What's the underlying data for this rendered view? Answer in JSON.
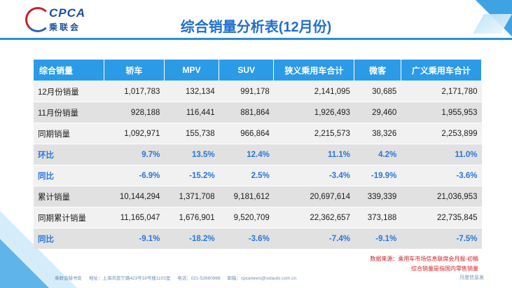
{
  "logo": {
    "text": "CPCA",
    "cn": "乘联会"
  },
  "title": "综合销量分析表(12月份)",
  "table": {
    "headers": [
      "综合销量",
      "轿车",
      "MPV",
      "SUV",
      "狭义乘用车合计",
      "微客",
      "广义乘用车合计"
    ],
    "rows": [
      {
        "label": "12月份销量",
        "values": [
          "1,017,783",
          "132,134",
          "991,178",
          "2,141,095",
          "30,685",
          "2,171,780"
        ],
        "pct": false
      },
      {
        "label": "11月份销量",
        "values": [
          "928,188",
          "116,441",
          "881,864",
          "1,926,493",
          "29,460",
          "1,955,953"
        ],
        "pct": false
      },
      {
        "label": "同期销量",
        "values": [
          "1,092,971",
          "155,738",
          "966,864",
          "2,215,573",
          "38,326",
          "2,253,899"
        ],
        "pct": false
      },
      {
        "label": "环比",
        "values": [
          "9.7%",
          "13.5%",
          "12.4%",
          "11.1%",
          "4.2%",
          "11.0%"
        ],
        "pct": true
      },
      {
        "label": "同比",
        "values": [
          "-6.9%",
          "-15.2%",
          "2.5%",
          "-3.4%",
          "-19.9%",
          "-3.6%"
        ],
        "pct": true
      },
      {
        "label": "累计销量",
        "values": [
          "10,144,294",
          "1,371,708",
          "9,181,612",
          "20,697,614",
          "339,339",
          "21,036,953"
        ],
        "pct": false
      },
      {
        "label": "同期累计销量",
        "values": [
          "11,165,047",
          "1,676,901",
          "9,520,709",
          "22,362,657",
          "373,188",
          "22,735,845"
        ],
        "pct": false
      },
      {
        "label": "同比",
        "values": [
          "-9.1%",
          "-18.2%",
          "-3.6%",
          "-7.4%",
          "-9.1%",
          "-7.5%"
        ],
        "pct": true
      }
    ]
  },
  "source": {
    "line1": "数据来源：乘用车市场信息联席会月报-初稿",
    "line2": "综合销量是指国内零售销量"
  },
  "footer": {
    "secretary": "乘联会秘书处",
    "address": "地址：上海市武宁路423号18号楼1103室",
    "phone": "电话：021-52680968",
    "email": "邮箱：cpcanews@sxtauto.com.cn",
    "right": "月度信息发"
  }
}
